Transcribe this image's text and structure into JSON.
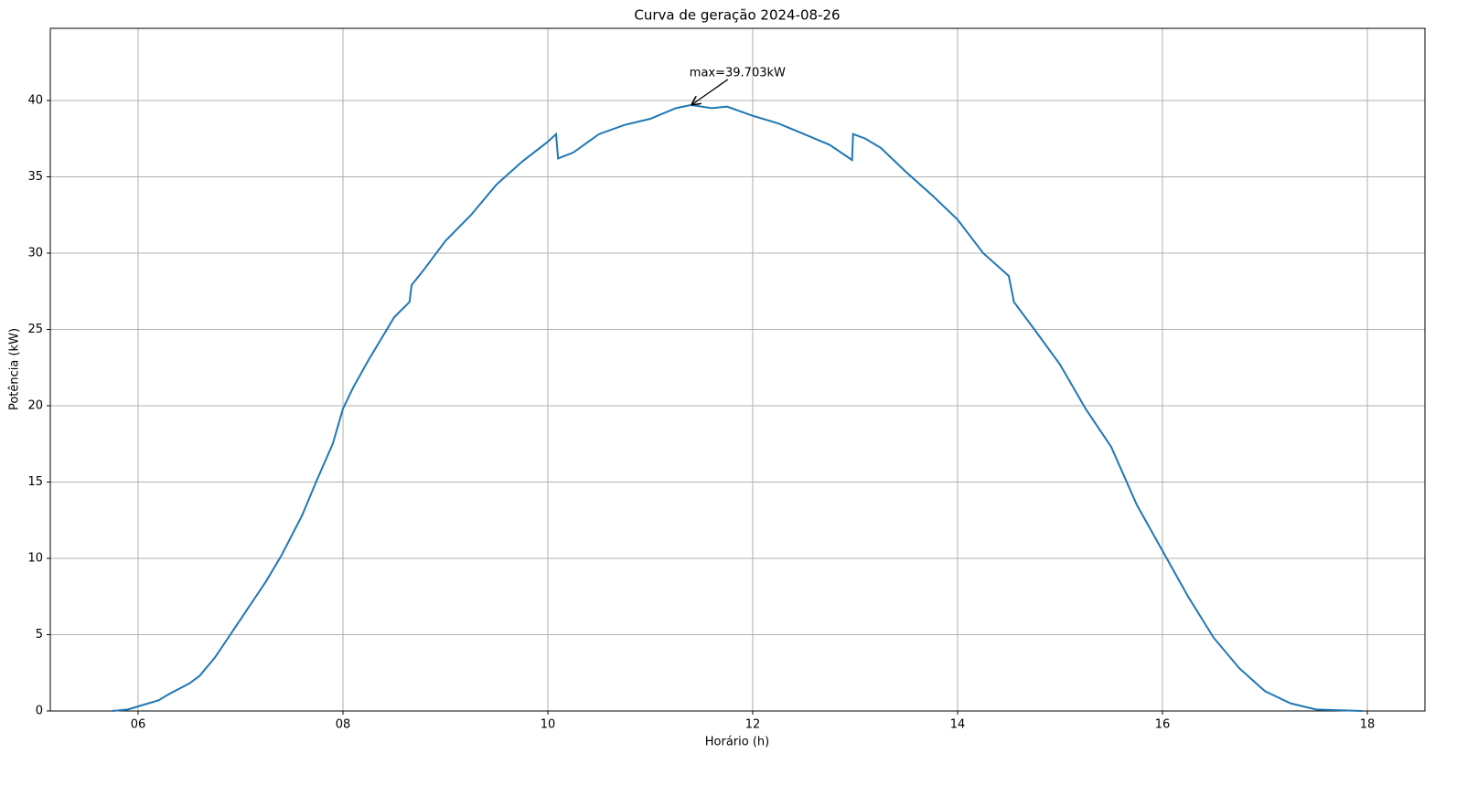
{
  "chart_data": {
    "type": "line",
    "title": "Curva de geração 2024-08-26",
    "x_label": "Horário (h)",
    "y_label": "Potência (kW)",
    "x": [
      5.75,
      5.9,
      6.0,
      6.2,
      6.3,
      6.5,
      6.6,
      6.75,
      6.9,
      7.0,
      7.1,
      7.15,
      7.25,
      7.4,
      7.5,
      7.6,
      7.75,
      7.9,
      8.0,
      8.1,
      8.25,
      8.5,
      8.65,
      8.67,
      8.8,
      9.0,
      9.25,
      9.5,
      9.75,
      10.0,
      10.08,
      10.1,
      10.25,
      10.5,
      10.75,
      11.0,
      11.25,
      11.4,
      11.6,
      11.75,
      12.0,
      12.25,
      12.5,
      12.75,
      12.97,
      12.98,
      13.1,
      13.25,
      13.5,
      13.75,
      14.0,
      14.25,
      14.5,
      14.55,
      14.75,
      15.0,
      15.25,
      15.5,
      15.75,
      16.0,
      16.25,
      16.5,
      16.75,
      17.0,
      17.25,
      17.5,
      17.95
    ],
    "values": [
      0,
      0.1,
      0.3,
      0.7,
      1.1,
      1.8,
      2.3,
      3.5,
      5.0,
      6.0,
      7.0,
      7.5,
      8.5,
      10.2,
      11.5,
      12.8,
      15.2,
      17.5,
      19.8,
      21.2,
      23.0,
      25.8,
      26.8,
      27.9,
      29.0,
      30.8,
      32.5,
      34.5,
      36.0,
      37.3,
      37.8,
      36.2,
      36.6,
      37.8,
      38.4,
      38.8,
      39.5,
      39.703,
      39.5,
      39.6,
      39.0,
      38.5,
      37.8,
      37.1,
      36.1,
      37.8,
      37.5,
      36.9,
      35.3,
      33.8,
      32.2,
      30.0,
      28.5,
      26.8,
      25.0,
      22.7,
      19.8,
      17.3,
      13.5,
      10.5,
      7.5,
      4.8,
      2.8,
      1.3,
      0.5,
      0.1,
      0.0
    ],
    "color": "#1f77b4",
    "xlim": [
      5.143,
      18.5625
    ],
    "ylim": [
      0,
      44.73
    ],
    "xticks": [
      {
        "value": 6,
        "label": "06"
      },
      {
        "value": 8,
        "label": "08"
      },
      {
        "value": 10,
        "label": "10"
      },
      {
        "value": 12,
        "label": "12"
      },
      {
        "value": 14,
        "label": "14"
      },
      {
        "value": 16,
        "label": "16"
      },
      {
        "value": 18,
        "label": "18"
      }
    ],
    "yticks": [
      0,
      5,
      10,
      15,
      20,
      25,
      30,
      35,
      40
    ],
    "grid": true,
    "annotation": {
      "text": "max=39.703kW",
      "x": 11.4,
      "y": 39.703
    }
  }
}
